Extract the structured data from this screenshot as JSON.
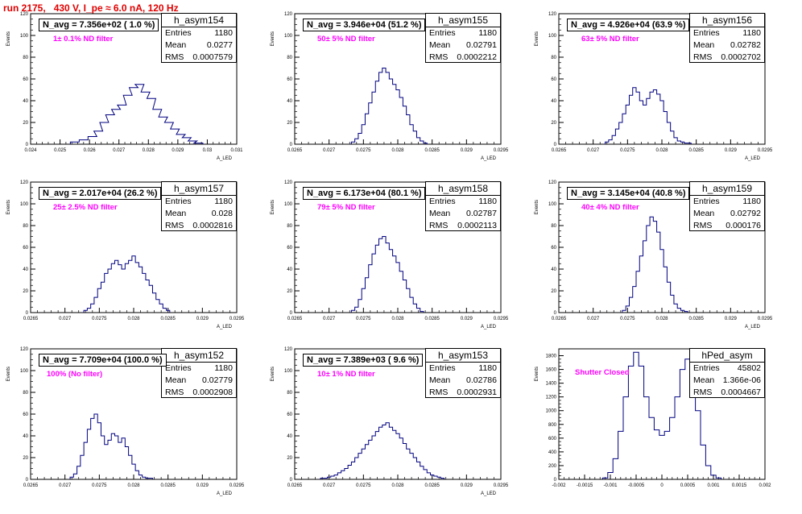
{
  "page_title": "run 2175,   430 V, I_pe ≈ 6.0 nA, 120 Hz",
  "colors": {
    "title": "#e00000",
    "histogram": "#000080",
    "filter_label": "#ff00ff"
  },
  "chart_data": [
    {
      "type": "histogram",
      "name": "h_asym154",
      "header": "N_avg = 7.356e+02 ( 1.0 %)",
      "filter_label": "1± 0.1% ND filter",
      "stats": {
        "entries": "1180",
        "mean": "0.0277",
        "rms": "0.0007579"
      },
      "ylabel": "Events",
      "xlabel": "A_LED",
      "xlim": [
        0.024,
        0.031
      ],
      "ylim": [
        0,
        120
      ],
      "x_ticks": [
        "0.024",
        "0.025",
        "0.026",
        "0.027",
        "0.028",
        "0.029",
        "0.03",
        "0.031"
      ],
      "y_ticks": [
        "0",
        "20",
        "40",
        "60",
        "80",
        "100",
        "120"
      ],
      "x": [
        0.0255,
        0.0258,
        0.0261,
        0.0263,
        0.0265,
        0.0267,
        0.0269,
        0.0271,
        0.0273,
        0.0275,
        0.0277,
        0.0279,
        0.0281,
        0.0283,
        0.0285,
        0.0287,
        0.0289,
        0.0291,
        0.0293,
        0.0295,
        0.0297
      ],
      "values": [
        2,
        4,
        7,
        12,
        20,
        27,
        32,
        36,
        45,
        52,
        55,
        48,
        42,
        32,
        25,
        20,
        14,
        9,
        6,
        3,
        1
      ]
    },
    {
      "type": "histogram",
      "name": "h_asym155",
      "header": "N_avg = 3.946e+04 (51.2 %)",
      "filter_label": "50± 5% ND filter",
      "stats": {
        "entries": "1180",
        "mean": "0.02791",
        "rms": "0.0002212"
      },
      "ylabel": "Events",
      "xlabel": "A_LED",
      "xlim": [
        0.0265,
        0.0295
      ],
      "ylim": [
        0,
        120
      ],
      "x_ticks": [
        "0.0265",
        "0.027",
        "0.0275",
        "0.028",
        "0.0285",
        "0.029",
        "0.0295"
      ],
      "y_ticks": [
        "0",
        "20",
        "40",
        "60",
        "80",
        "100",
        "120"
      ],
      "x": [
        0.02735,
        0.0274,
        0.02745,
        0.0275,
        0.02755,
        0.0276,
        0.02765,
        0.0277,
        0.02775,
        0.0278,
        0.02785,
        0.0279,
        0.02795,
        0.028,
        0.02805,
        0.0281,
        0.02815,
        0.0282,
        0.02825,
        0.0283,
        0.02835,
        0.0284
      ],
      "values": [
        2,
        5,
        10,
        18,
        28,
        38,
        48,
        58,
        66,
        70,
        66,
        60,
        55,
        50,
        43,
        35,
        27,
        18,
        12,
        6,
        3,
        1
      ]
    },
    {
      "type": "histogram",
      "name": "h_asym156",
      "header": "N_avg = 4.926e+04 (63.9 %)",
      "filter_label": "63± 5% ND filter",
      "stats": {
        "entries": "1180",
        "mean": "0.02782",
        "rms": "0.0002702"
      },
      "ylabel": "Events",
      "xlabel": "A_LED",
      "xlim": [
        0.0265,
        0.0295
      ],
      "ylim": [
        0,
        120
      ],
      "x_ticks": [
        "0.0265",
        "0.027",
        "0.0275",
        "0.028",
        "0.0285",
        "0.029",
        "0.0295"
      ],
      "y_ticks": [
        "0",
        "20",
        "40",
        "60",
        "80",
        "100",
        "120"
      ],
      "x": [
        0.0272,
        0.02725,
        0.0273,
        0.02735,
        0.0274,
        0.02745,
        0.0275,
        0.02755,
        0.0276,
        0.02765,
        0.0277,
        0.02775,
        0.0278,
        0.02785,
        0.0279,
        0.02795,
        0.028,
        0.02805,
        0.0281,
        0.02815,
        0.0282,
        0.02825,
        0.0283,
        0.02835,
        0.0284
      ],
      "values": [
        2,
        4,
        8,
        14,
        20,
        28,
        36,
        45,
        52,
        48,
        40,
        36,
        42,
        48,
        50,
        46,
        40,
        30,
        20,
        12,
        6,
        3,
        2,
        1,
        1
      ]
    },
    {
      "type": "histogram",
      "name": "h_asym157",
      "header": "N_avg = 2.017e+04 (26.2 %)",
      "filter_label": "25± 2.5% ND filter",
      "stats": {
        "entries": "1180",
        "mean": "0.028",
        "rms": "0.0002816"
      },
      "ylabel": "Events",
      "xlabel": "A_LED",
      "xlim": [
        0.0265,
        0.0295
      ],
      "ylim": [
        0,
        120
      ],
      "x_ticks": [
        "0.0265",
        "0.027",
        "0.0275",
        "0.028",
        "0.0285",
        "0.029",
        "0.0295"
      ],
      "y_ticks": [
        "0",
        "20",
        "40",
        "60",
        "80",
        "100",
        "120"
      ],
      "x": [
        0.0273,
        0.02735,
        0.0274,
        0.02745,
        0.0275,
        0.02755,
        0.0276,
        0.02765,
        0.0277,
        0.02775,
        0.0278,
        0.02785,
        0.0279,
        0.02795,
        0.028,
        0.02805,
        0.0281,
        0.02815,
        0.0282,
        0.02825,
        0.0283,
        0.02835,
        0.0284,
        0.02845,
        0.0285
      ],
      "values": [
        2,
        4,
        8,
        14,
        22,
        28,
        36,
        40,
        45,
        48,
        44,
        40,
        45,
        48,
        52,
        46,
        42,
        36,
        30,
        25,
        18,
        12,
        8,
        4,
        2
      ]
    },
    {
      "type": "histogram",
      "name": "h_asym158",
      "header": "N_avg = 6.173e+04 (80.1 %)",
      "filter_label": "79± 5% ND filter",
      "stats": {
        "entries": "1180",
        "mean": "0.02787",
        "rms": "0.0002113"
      },
      "ylabel": "Events",
      "xlabel": "A_LED",
      "xlim": [
        0.0265,
        0.0295
      ],
      "ylim": [
        0,
        120
      ],
      "x_ticks": [
        "0.0265",
        "0.027",
        "0.0275",
        "0.028",
        "0.0285",
        "0.029",
        "0.0295"
      ],
      "y_ticks": [
        "0",
        "20",
        "40",
        "60",
        "80",
        "100",
        "120"
      ],
      "x": [
        0.02735,
        0.0274,
        0.02745,
        0.0275,
        0.02755,
        0.0276,
        0.02765,
        0.0277,
        0.02775,
        0.0278,
        0.02785,
        0.0279,
        0.02795,
        0.028,
        0.02805,
        0.0281,
        0.02815,
        0.0282,
        0.02825,
        0.0283,
        0.02835
      ],
      "values": [
        2,
        5,
        12,
        22,
        32,
        44,
        54,
        62,
        68,
        70,
        64,
        58,
        52,
        46,
        38,
        30,
        22,
        14,
        8,
        4,
        1
      ]
    },
    {
      "type": "histogram",
      "name": "h_asym159",
      "header": "N_avg = 3.145e+04 (40.8 %)",
      "filter_label": "40± 4% ND filter",
      "stats": {
        "entries": "1180",
        "mean": "0.02792",
        "rms": "0.000176"
      },
      "ylabel": "Events",
      "xlabel": "A_LED",
      "xlim": [
        0.0265,
        0.0295
      ],
      "ylim": [
        0,
        120
      ],
      "x_ticks": [
        "0.0265",
        "0.027",
        "0.0275",
        "0.028",
        "0.0285",
        "0.029",
        "0.0295"
      ],
      "y_ticks": [
        "0",
        "20",
        "40",
        "60",
        "80",
        "100",
        "120"
      ],
      "x": [
        0.02745,
        0.0275,
        0.02755,
        0.0276,
        0.02765,
        0.0277,
        0.02775,
        0.0278,
        0.02785,
        0.0279,
        0.02795,
        0.028,
        0.02805,
        0.0281,
        0.02815,
        0.0282,
        0.02825,
        0.0283,
        0.02835
      ],
      "values": [
        2,
        6,
        14,
        24,
        38,
        52,
        66,
        80,
        88,
        84,
        74,
        58,
        42,
        28,
        16,
        8,
        4,
        2,
        1
      ]
    },
    {
      "type": "histogram",
      "name": "h_asym152",
      "header": "N_avg = 7.709e+04 (100.0 %)",
      "filter_label": "100% (No filter)",
      "stats": {
        "entries": "1180",
        "mean": "0.02779",
        "rms": "0.0002908"
      },
      "ylabel": "Events",
      "xlabel": "A_LED",
      "xlim": [
        0.0265,
        0.0295
      ],
      "ylim": [
        0,
        120
      ],
      "x_ticks": [
        "0.0265",
        "0.027",
        "0.0275",
        "0.028",
        "0.0285",
        "0.029",
        "0.0295"
      ],
      "y_ticks": [
        "0",
        "20",
        "40",
        "60",
        "80",
        "100",
        "120"
      ],
      "x": [
        0.0271,
        0.02715,
        0.0272,
        0.02725,
        0.0273,
        0.02735,
        0.0274,
        0.02745,
        0.0275,
        0.02755,
        0.0276,
        0.02765,
        0.0277,
        0.02775,
        0.0278,
        0.02785,
        0.0279,
        0.02795,
        0.028,
        0.02805,
        0.0281,
        0.02815,
        0.0282,
        0.02825
      ],
      "values": [
        2,
        5,
        12,
        22,
        34,
        46,
        56,
        60,
        52,
        40,
        32,
        36,
        42,
        40,
        34,
        38,
        30,
        22,
        14,
        8,
        4,
        2,
        1,
        1
      ]
    },
    {
      "type": "histogram",
      "name": "h_asym153",
      "header": "N_avg = 7.389e+03 ( 9.6 %)",
      "filter_label": "10± 1% ND filter",
      "stats": {
        "entries": "1180",
        "mean": "0.02786",
        "rms": "0.0002931"
      },
      "ylabel": "Events",
      "xlabel": "A_LED",
      "xlim": [
        0.0265,
        0.0295
      ],
      "ylim": [
        0,
        120
      ],
      "x_ticks": [
        "0.0265",
        "0.027",
        "0.0275",
        "0.028",
        "0.0285",
        "0.029",
        "0.0295"
      ],
      "y_ticks": [
        "0",
        "20",
        "40",
        "60",
        "80",
        "100",
        "120"
      ],
      "x": [
        0.0269,
        0.02695,
        0.027,
        0.02705,
        0.0271,
        0.02715,
        0.0272,
        0.02725,
        0.0273,
        0.02735,
        0.0274,
        0.02745,
        0.0275,
        0.02755,
        0.0276,
        0.02765,
        0.0277,
        0.02775,
        0.0278,
        0.02785,
        0.0279,
        0.02795,
        0.028,
        0.02805,
        0.0281,
        0.02815,
        0.0282,
        0.02825,
        0.0283,
        0.02835,
        0.0284,
        0.02845,
        0.0285,
        0.02855,
        0.0286,
        0.02865
      ],
      "values": [
        1,
        1,
        2,
        3,
        4,
        6,
        8,
        10,
        13,
        16,
        20,
        24,
        28,
        32,
        36,
        40,
        44,
        48,
        50,
        52,
        48,
        45,
        42,
        38,
        33,
        28,
        24,
        20,
        16,
        12,
        9,
        6,
        4,
        3,
        2,
        1
      ]
    },
    {
      "type": "histogram",
      "name": "hPed_asym",
      "header": "",
      "filter_label": "Shutter Closed",
      "stats": {
        "entries": "45802",
        "mean": "1.366e-06",
        "rms": "0.0004667"
      },
      "ylabel": "Events",
      "xlabel": "",
      "xlim": [
        -0.002,
        0.002
      ],
      "ylim": [
        0,
        1900
      ],
      "x_ticks": [
        "-0.002",
        "-0.0015",
        "-0.001",
        "-0.0005",
        "0",
        "0.0005",
        "0.001",
        "0.0015",
        "0.002"
      ],
      "y_ticks": [
        "0",
        "200",
        "400",
        "600",
        "800",
        "1000",
        "1200",
        "1400",
        "1600",
        "1800"
      ],
      "x": [
        -0.0011,
        -0.001,
        -0.0009,
        -0.0008,
        -0.0007,
        -0.0006,
        -0.0005,
        -0.0004,
        -0.0003,
        -0.0002,
        -0.0001,
        0,
        0.0001,
        0.0002,
        0.0003,
        0.0004,
        0.0005,
        0.0006,
        0.0007,
        0.0008,
        0.0009,
        0.001,
        0.0011
      ],
      "values": [
        20,
        100,
        300,
        700,
        1200,
        1650,
        1850,
        1650,
        1200,
        900,
        720,
        640,
        700,
        900,
        1200,
        1600,
        1750,
        1500,
        1000,
        500,
        200,
        60,
        20
      ]
    }
  ]
}
